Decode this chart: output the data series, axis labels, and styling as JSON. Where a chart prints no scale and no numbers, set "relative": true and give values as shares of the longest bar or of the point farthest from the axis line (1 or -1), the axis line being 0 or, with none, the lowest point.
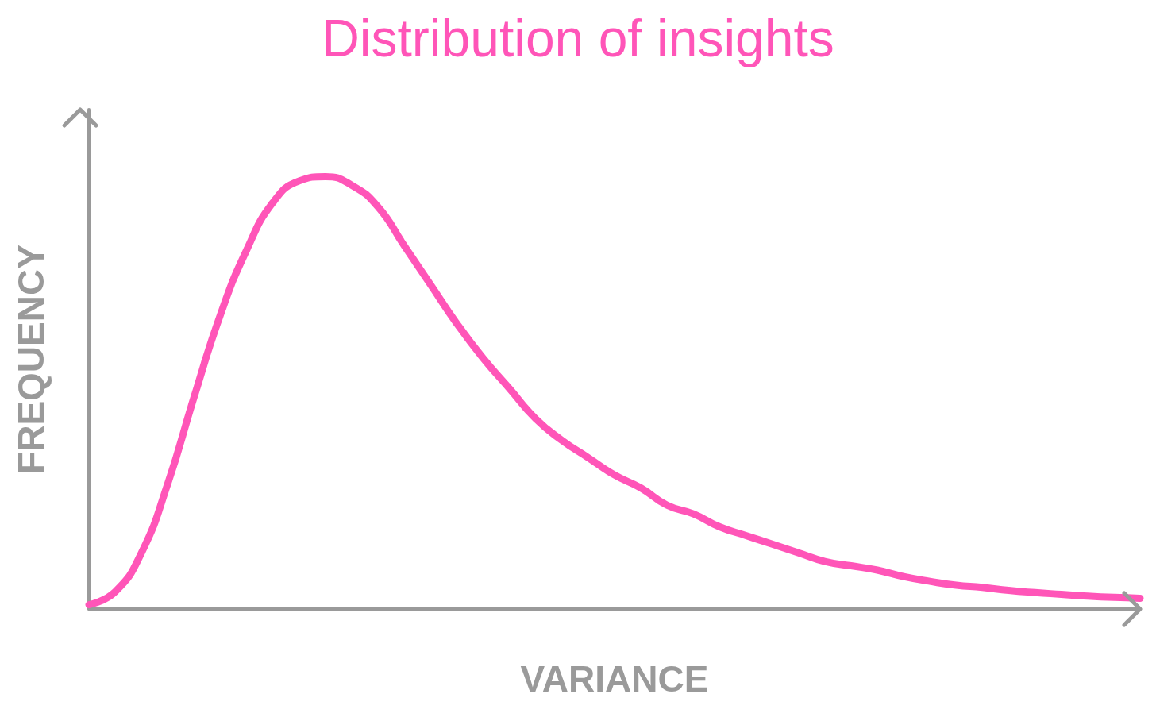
{
  "chart_data": {
    "type": "line",
    "title": "Distribution of insights",
    "xlabel": "VARIANCE",
    "ylabel": "FREQUENCY",
    "relative": true,
    "grid": false,
    "line_style": "solid",
    "categories": [
      null,
      null,
      null,
      null,
      null,
      null,
      null,
      null,
      null,
      null,
      null,
      null,
      null,
      null,
      null,
      null,
      null,
      null,
      null,
      null,
      null,
      null,
      null,
      null,
      null,
      null,
      null,
      null,
      null,
      null,
      null,
      null,
      null,
      null,
      null,
      null,
      null,
      null,
      null,
      null,
      null
    ],
    "series": [
      {
        "color": "#ff55b8",
        "values": [
          0.01,
          0.04,
          0.13,
          0.29,
          0.49,
          0.68,
          0.83,
          0.94,
          0.99,
          1,
          0.98,
          0.93,
          0.84,
          0.75,
          0.66,
          0.58,
          0.51,
          0.44,
          0.39,
          0.35,
          0.31,
          0.28,
          0.24,
          0.22,
          0.19,
          0.17,
          0.15,
          0.13,
          0.11,
          0.1,
          0.09,
          0.075,
          0.064,
          0.055,
          0.05,
          0.043,
          0.038,
          0.034,
          0.03,
          0.027,
          0.025
        ]
      }
    ]
  }
}
